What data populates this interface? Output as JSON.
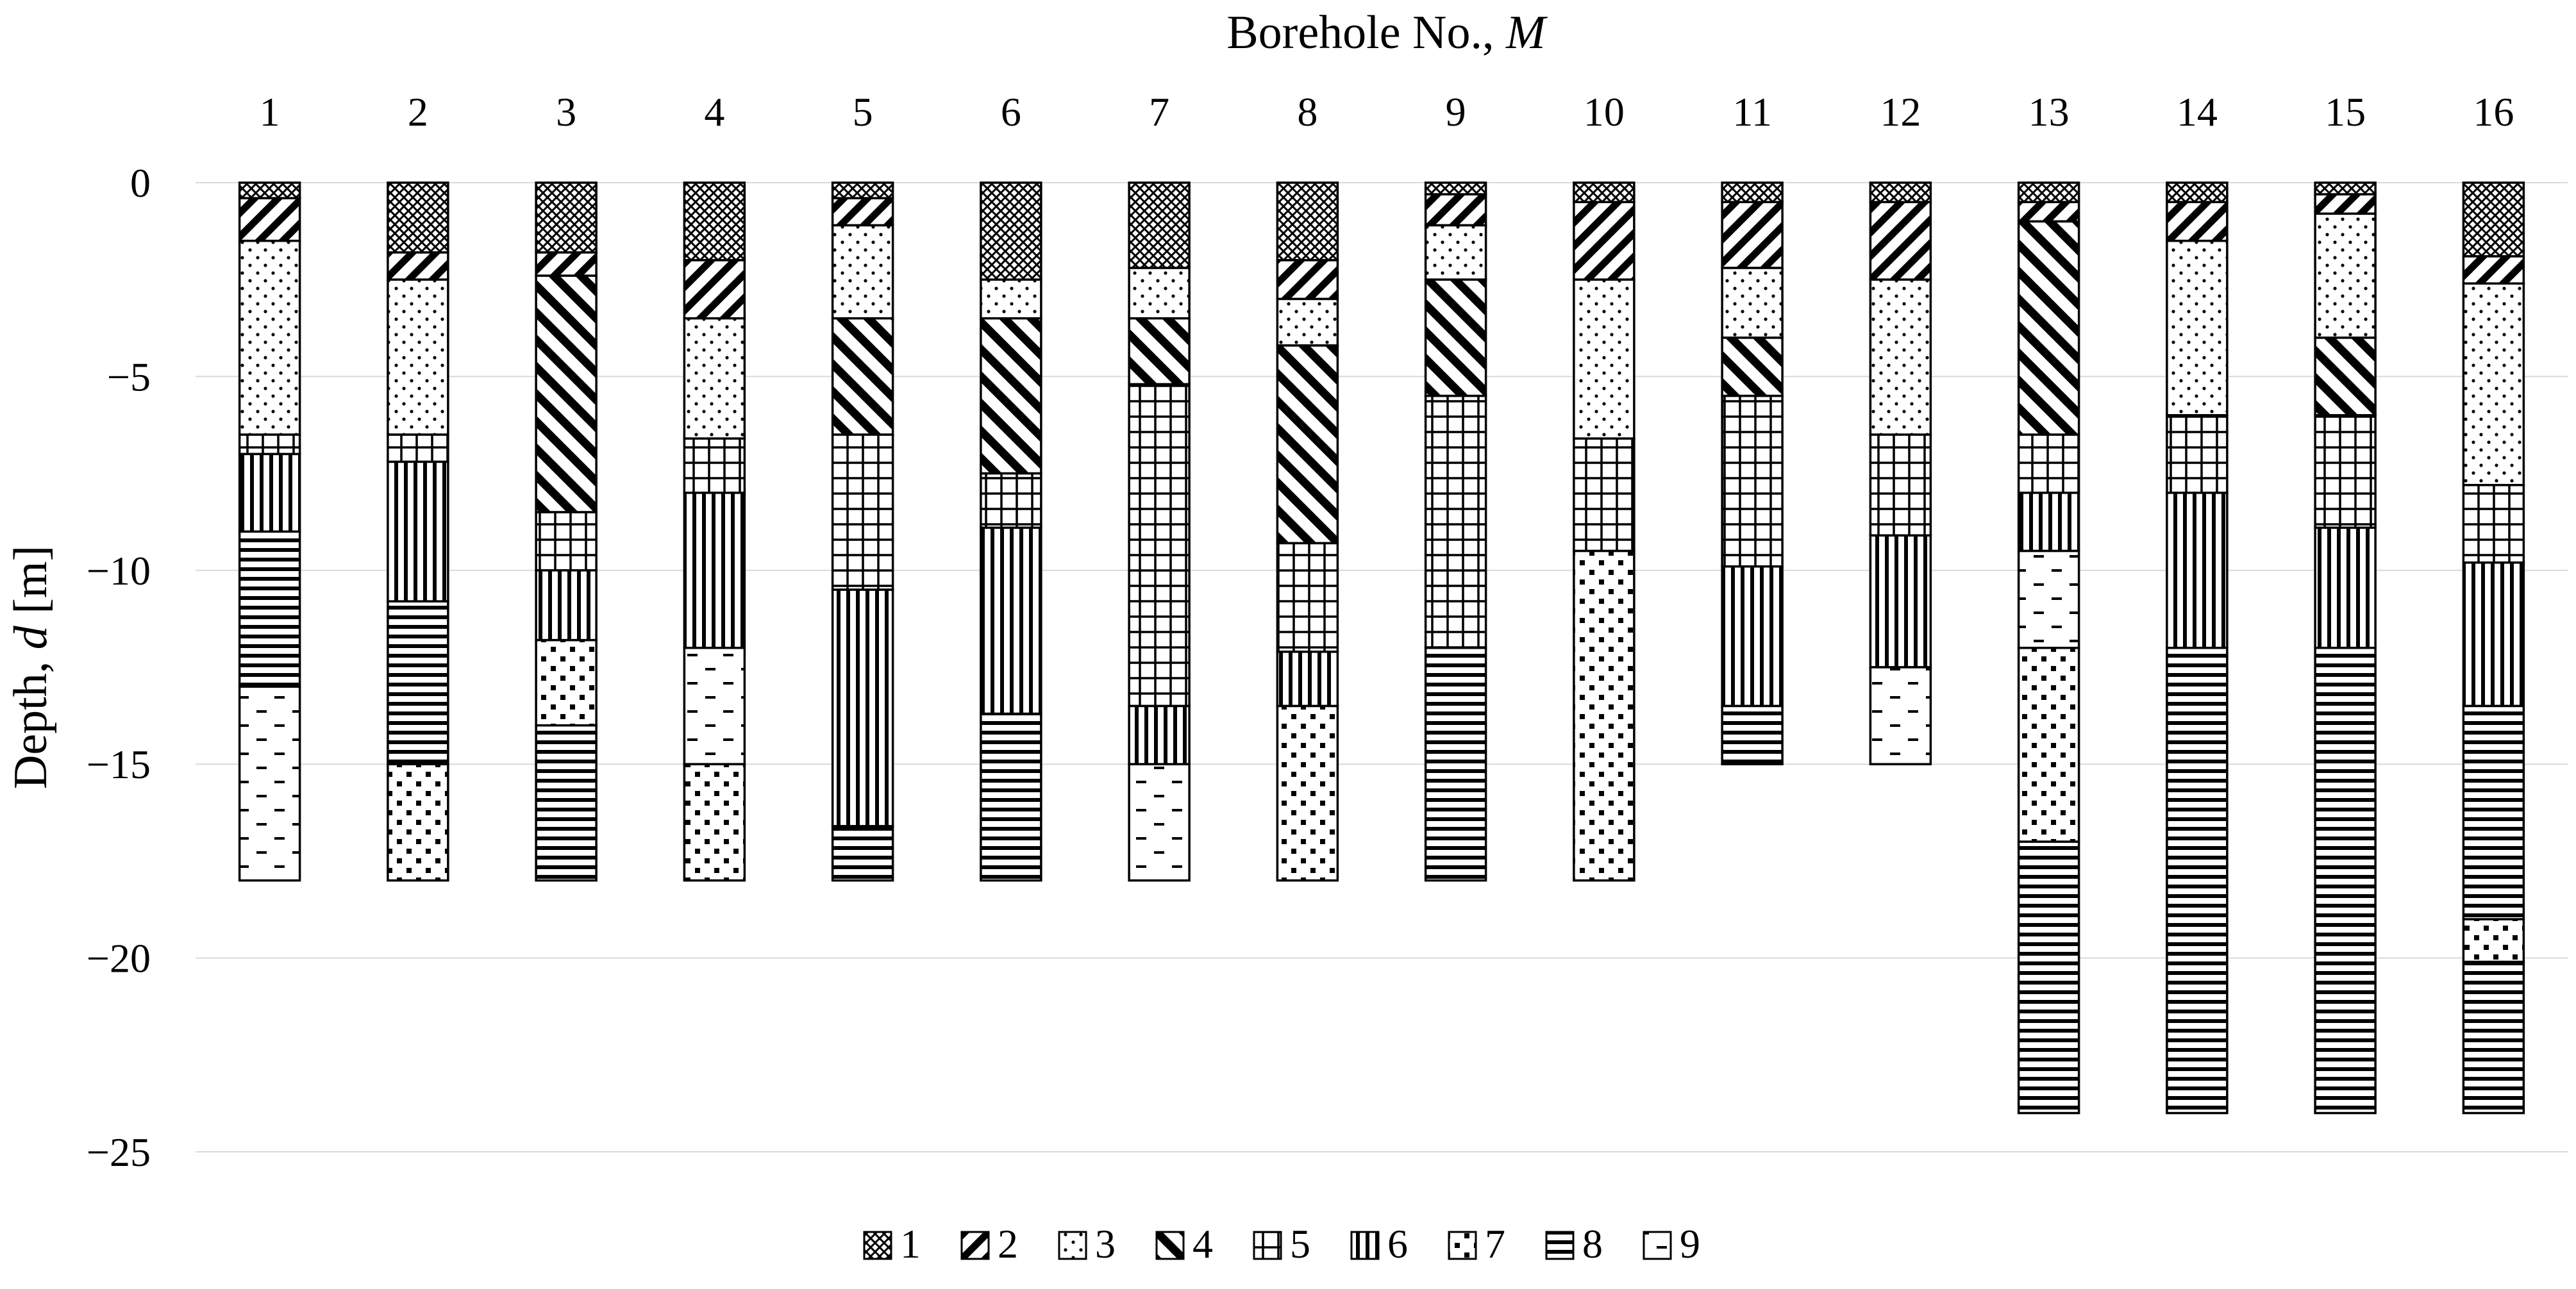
{
  "chart_data": {
    "type": "bar",
    "subtype": "stacked-layer-columns",
    "xlabel_text": "Borehole No., ",
    "xlabel_var": "M",
    "ylabel_text": "Depth, ",
    "ylabel_var": "d",
    "ylabel_unit": " [m]",
    "x_axis_position": "top",
    "ylim": [
      -25,
      0
    ],
    "yticks": [
      0,
      -5,
      -10,
      -15,
      -20,
      -25
    ],
    "ytick_labels": [
      "0",
      "−5",
      "−10",
      "−15",
      "−20",
      "−25"
    ],
    "grid": true,
    "legend_position": "bottom",
    "legend": [
      "1",
      "2",
      "3",
      "4",
      "5",
      "6",
      "7",
      "8",
      "9"
    ],
    "boreholes": [
      {
        "label": "1",
        "layers": [
          {
            "t": 1,
            "from": 0,
            "to": -0.4
          },
          {
            "t": 2,
            "from": -0.4,
            "to": -1.5
          },
          {
            "t": 3,
            "from": -1.5,
            "to": -6.5
          },
          {
            "t": 5,
            "from": -6.5,
            "to": -7
          },
          {
            "t": 6,
            "from": -7,
            "to": -9
          },
          {
            "t": 8,
            "from": -9,
            "to": -13
          },
          {
            "t": 9,
            "from": -13,
            "to": -18
          }
        ]
      },
      {
        "label": "2",
        "layers": [
          {
            "t": 1,
            "from": 0,
            "to": -1.8
          },
          {
            "t": 2,
            "from": -1.8,
            "to": -2.5
          },
          {
            "t": 3,
            "from": -2.5,
            "to": -6.5
          },
          {
            "t": 5,
            "from": -6.5,
            "to": -7.2
          },
          {
            "t": 6,
            "from": -7.2,
            "to": -10.8
          },
          {
            "t": 8,
            "from": -10.8,
            "to": -15
          },
          {
            "t": 7,
            "from": -15,
            "to": -18
          }
        ]
      },
      {
        "label": "3",
        "layers": [
          {
            "t": 1,
            "from": 0,
            "to": -1.8
          },
          {
            "t": 2,
            "from": -1.8,
            "to": -2.4
          },
          {
            "t": 4,
            "from": -2.4,
            "to": -8.5
          },
          {
            "t": 5,
            "from": -8.5,
            "to": -10
          },
          {
            "t": 6,
            "from": -10,
            "to": -11.8
          },
          {
            "t": 7,
            "from": -11.8,
            "to": -14
          },
          {
            "t": 8,
            "from": -14,
            "to": -18
          }
        ]
      },
      {
        "label": "4",
        "layers": [
          {
            "t": 1,
            "from": 0,
            "to": -2
          },
          {
            "t": 2,
            "from": -2,
            "to": -3.5
          },
          {
            "t": 3,
            "from": -3.5,
            "to": -6.6
          },
          {
            "t": 5,
            "from": -6.6,
            "to": -8
          },
          {
            "t": 6,
            "from": -8,
            "to": -12
          },
          {
            "t": 9,
            "from": -12,
            "to": -15
          },
          {
            "t": 7,
            "from": -15,
            "to": -18
          }
        ]
      },
      {
        "label": "5",
        "layers": [
          {
            "t": 1,
            "from": 0,
            "to": -0.4
          },
          {
            "t": 2,
            "from": -0.4,
            "to": -1.1
          },
          {
            "t": 3,
            "from": -1.1,
            "to": -3.5
          },
          {
            "t": 4,
            "from": -3.5,
            "to": -6.5
          },
          {
            "t": 5,
            "from": -6.5,
            "to": -10.5
          },
          {
            "t": 6,
            "from": -10.5,
            "to": -16.6
          },
          {
            "t": 8,
            "from": -16.6,
            "to": -18
          }
        ]
      },
      {
        "label": "6",
        "layers": [
          {
            "t": 1,
            "from": 0,
            "to": -2.5
          },
          {
            "t": 3,
            "from": -2.5,
            "to": -3.5
          },
          {
            "t": 4,
            "from": -3.5,
            "to": -7.5
          },
          {
            "t": 5,
            "from": -7.5,
            "to": -8.9
          },
          {
            "t": 6,
            "from": -8.9,
            "to": -13.7
          },
          {
            "t": 8,
            "from": -13.7,
            "to": -18
          }
        ]
      },
      {
        "label": "7",
        "layers": [
          {
            "t": 1,
            "from": 0,
            "to": -2.2
          },
          {
            "t": 3,
            "from": -2.2,
            "to": -3.5
          },
          {
            "t": 4,
            "from": -3.5,
            "to": -5.2
          },
          {
            "t": 5,
            "from": -5.2,
            "to": -13.5
          },
          {
            "t": 6,
            "from": -13.5,
            "to": -15
          },
          {
            "t": 9,
            "from": -15,
            "to": -18
          }
        ]
      },
      {
        "label": "8",
        "layers": [
          {
            "t": 1,
            "from": 0,
            "to": -2
          },
          {
            "t": 2,
            "from": -2,
            "to": -3
          },
          {
            "t": 3,
            "from": -3,
            "to": -4.2
          },
          {
            "t": 4,
            "from": -4.2,
            "to": -9.3
          },
          {
            "t": 5,
            "from": -9.3,
            "to": -12.1
          },
          {
            "t": 6,
            "from": -12.1,
            "to": -13.5
          },
          {
            "t": 7,
            "from": -13.5,
            "to": -18
          }
        ]
      },
      {
        "label": "9",
        "layers": [
          {
            "t": 1,
            "from": 0,
            "to": -0.3
          },
          {
            "t": 2,
            "from": -0.3,
            "to": -1.1
          },
          {
            "t": 3,
            "from": -1.1,
            "to": -2.5
          },
          {
            "t": 4,
            "from": -2.5,
            "to": -5.5
          },
          {
            "t": 5,
            "from": -5.5,
            "to": -12
          },
          {
            "t": 8,
            "from": -12,
            "to": -18
          }
        ]
      },
      {
        "label": "10",
        "layers": [
          {
            "t": 1,
            "from": 0,
            "to": -0.5
          },
          {
            "t": 2,
            "from": -0.5,
            "to": -2.5
          },
          {
            "t": 3,
            "from": -2.5,
            "to": -6.6
          },
          {
            "t": 5,
            "from": -6.6,
            "to": -9.5
          },
          {
            "t": 7,
            "from": -9.5,
            "to": -18
          }
        ]
      },
      {
        "label": "11",
        "layers": [
          {
            "t": 1,
            "from": 0,
            "to": -0.5
          },
          {
            "t": 2,
            "from": -0.5,
            "to": -2.2
          },
          {
            "t": 3,
            "from": -2.2,
            "to": -4
          },
          {
            "t": 4,
            "from": -4,
            "to": -5.5
          },
          {
            "t": 5,
            "from": -5.5,
            "to": -9.9
          },
          {
            "t": 6,
            "from": -9.9,
            "to": -13.5
          },
          {
            "t": 8,
            "from": -13.5,
            "to": -15
          }
        ]
      },
      {
        "label": "12",
        "layers": [
          {
            "t": 1,
            "from": 0,
            "to": -0.5
          },
          {
            "t": 2,
            "from": -0.5,
            "to": -2.5
          },
          {
            "t": 3,
            "from": -2.5,
            "to": -6.5
          },
          {
            "t": 5,
            "from": -6.5,
            "to": -9.1
          },
          {
            "t": 6,
            "from": -9.1,
            "to": -12.5
          },
          {
            "t": 9,
            "from": -12.5,
            "to": -15
          }
        ]
      },
      {
        "label": "13",
        "layers": [
          {
            "t": 1,
            "from": 0,
            "to": -0.5
          },
          {
            "t": 2,
            "from": -0.5,
            "to": -1
          },
          {
            "t": 4,
            "from": -1,
            "to": -6.5
          },
          {
            "t": 5,
            "from": -6.5,
            "to": -8
          },
          {
            "t": 6,
            "from": -8,
            "to": -9.5
          },
          {
            "t": 9,
            "from": -9.5,
            "to": -12
          },
          {
            "t": 7,
            "from": -12,
            "to": -17
          },
          {
            "t": 8,
            "from": -17,
            "to": -24
          }
        ]
      },
      {
        "label": "14",
        "layers": [
          {
            "t": 1,
            "from": 0,
            "to": -0.5
          },
          {
            "t": 2,
            "from": -0.5,
            "to": -1.5
          },
          {
            "t": 3,
            "from": -1.5,
            "to": -6
          },
          {
            "t": 5,
            "from": -6,
            "to": -8
          },
          {
            "t": 6,
            "from": -8,
            "to": -12
          },
          {
            "t": 8,
            "from": -12,
            "to": -24
          }
        ]
      },
      {
        "label": "15",
        "layers": [
          {
            "t": 1,
            "from": 0,
            "to": -0.3
          },
          {
            "t": 2,
            "from": -0.3,
            "to": -0.8
          },
          {
            "t": 3,
            "from": -0.8,
            "to": -4
          },
          {
            "t": 4,
            "from": -4,
            "to": -6
          },
          {
            "t": 5,
            "from": -6,
            "to": -8.9
          },
          {
            "t": 6,
            "from": -8.9,
            "to": -12
          },
          {
            "t": 8,
            "from": -12,
            "to": -24
          }
        ]
      },
      {
        "label": "16",
        "layers": [
          {
            "t": 1,
            "from": 0,
            "to": -1.9
          },
          {
            "t": 2,
            "from": -1.9,
            "to": -2.6
          },
          {
            "t": 3,
            "from": -2.6,
            "to": -7.8
          },
          {
            "t": 5,
            "from": -7.8,
            "to": -9.8
          },
          {
            "t": 6,
            "from": -9.8,
            "to": -13.5
          },
          {
            "t": 8,
            "from": -13.5,
            "to": -19
          },
          {
            "t": 7,
            "from": -19,
            "to": -20.1
          },
          {
            "t": 8,
            "from": -20.1,
            "to": -24
          }
        ]
      }
    ]
  }
}
